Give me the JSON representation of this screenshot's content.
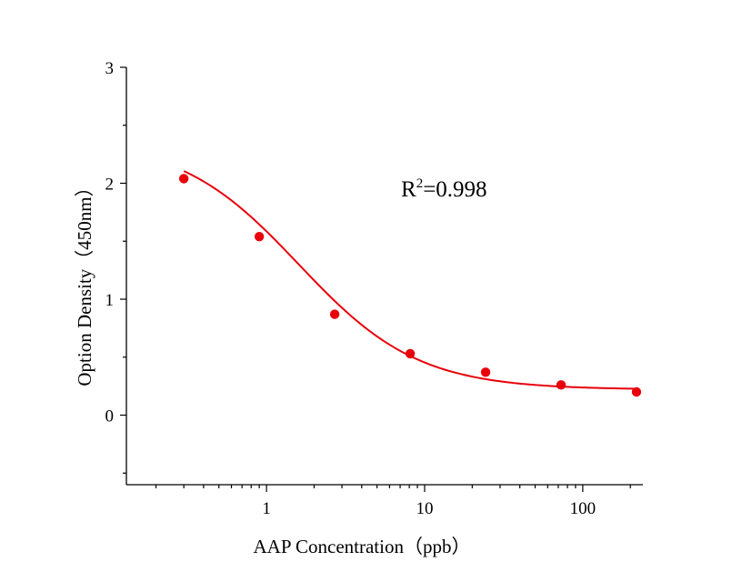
{
  "chart_data": {
    "type": "scatter",
    "xscale": "log",
    "xlabel": "AAP  Concentration（ppb）",
    "ylabel": "Option Density（450nm）",
    "xlim": [
      0.13,
      240
    ],
    "ylim": [
      -0.6,
      3
    ],
    "x_ticks": [
      {
        "value": 1,
        "label": "1"
      },
      {
        "value": 10,
        "label": "10"
      },
      {
        "value": 100,
        "label": "100"
      }
    ],
    "y_ticks": [
      {
        "value": 0,
        "label": "0"
      },
      {
        "value": 1,
        "label": "1"
      },
      {
        "value": 2,
        "label": "2"
      },
      {
        "value": 3,
        "label": "3"
      }
    ],
    "series": [
      {
        "x": [
          0.3,
          0.9,
          2.7,
          8.1,
          24.3,
          72.9,
          218.7
        ],
        "y": [
          2.04,
          1.54,
          0.87,
          0.53,
          0.37,
          0.26,
          0.2
        ],
        "color": "#e8000b",
        "fit": {
          "model": "4PL",
          "top": 2.38,
          "bottom": 0.22,
          "ec50": 1.6,
          "slope": 1.15
        }
      }
    ],
    "annotation": {
      "prefix": "R",
      "superscript": "2",
      "suffix": "=0.998"
    },
    "grid": false,
    "legend": "none"
  }
}
